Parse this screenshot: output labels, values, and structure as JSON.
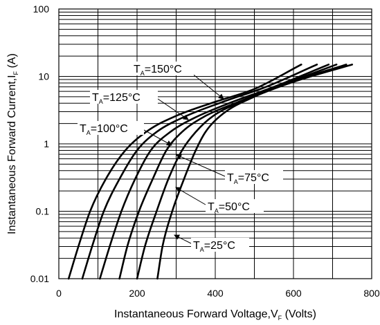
{
  "chart_data": {
    "type": "line",
    "title": "",
    "xlabel": {
      "main": "Instantaneous Forward Voltage,V",
      "sub": "F",
      "suffix": " (Volts)"
    },
    "ylabel": {
      "main": "Instantaneous Forward Current,I",
      "sub": "F",
      "suffix": " (A)"
    },
    "xlim": [
      0,
      800
    ],
    "ylim": [
      0.01,
      100
    ],
    "yscale": "log",
    "grid": true,
    "x_ticks": [
      "0",
      "200",
      "400",
      "600",
      "800"
    ],
    "y_ticks": [
      "0.01",
      "0.1",
      "1",
      "10",
      "100"
    ],
    "series": [
      {
        "name": "T_A=150°C",
        "label_main": "T",
        "label_sub": "A",
        "label_rest": "=150°C",
        "points": [
          [
            25,
            0.01
          ],
          [
            50,
            0.03
          ],
          [
            80,
            0.1
          ],
          [
            120,
            0.3
          ],
          [
            170,
            0.8
          ],
          [
            230,
            1.6
          ],
          [
            300,
            2.6
          ],
          [
            400,
            4.2
          ],
          [
            500,
            6.5
          ],
          [
            620,
            15
          ]
        ]
      },
      {
        "name": "T_A=125°C",
        "label_main": "T",
        "label_sub": "A",
        "label_rest": "=125°C",
        "points": [
          [
            60,
            0.01
          ],
          [
            85,
            0.03
          ],
          [
            115,
            0.1
          ],
          [
            155,
            0.3
          ],
          [
            200,
            0.8
          ],
          [
            250,
            1.5
          ],
          [
            320,
            2.5
          ],
          [
            420,
            4.2
          ],
          [
            530,
            7
          ],
          [
            660,
            15
          ]
        ]
      },
      {
        "name": "T_A=100°C",
        "label_main": "T",
        "label_sub": "A",
        "label_rest": "=100°C",
        "points": [
          [
            105,
            0.01
          ],
          [
            130,
            0.03
          ],
          [
            160,
            0.1
          ],
          [
            195,
            0.3
          ],
          [
            235,
            0.8
          ],
          [
            285,
            1.5
          ],
          [
            345,
            2.4
          ],
          [
            440,
            4.1
          ],
          [
            550,
            7
          ],
          [
            690,
            15
          ]
        ]
      },
      {
        "name": "T_A=75°C",
        "label_main": "T",
        "label_sub": "A",
        "label_rest": "=75°C",
        "points": [
          [
            155,
            0.01
          ],
          [
            175,
            0.03
          ],
          [
            205,
            0.1
          ],
          [
            240,
            0.3
          ],
          [
            275,
            0.8
          ],
          [
            315,
            1.5
          ],
          [
            370,
            2.5
          ],
          [
            460,
            4.2
          ],
          [
            565,
            7.3
          ],
          [
            710,
            15
          ]
        ]
      },
      {
        "name": "T_A=50°C",
        "label_main": "T",
        "label_sub": "A",
        "label_rest": "=50°C",
        "points": [
          [
            200,
            0.01
          ],
          [
            220,
            0.03
          ],
          [
            250,
            0.1
          ],
          [
            280,
            0.3
          ],
          [
            315,
            0.8
          ],
          [
            350,
            1.5
          ],
          [
            395,
            2.6
          ],
          [
            480,
            4.5
          ],
          [
            580,
            7.8
          ],
          [
            735,
            15
          ]
        ]
      },
      {
        "name": "T_A=25°C",
        "label_main": "T",
        "label_sub": "A",
        "label_rest": "=25°C",
        "points": [
          [
            252,
            0.01
          ],
          [
            265,
            0.03
          ],
          [
            290,
            0.1
          ],
          [
            320,
            0.3
          ],
          [
            350,
            0.8
          ],
          [
            375,
            1.5
          ],
          [
            420,
            2.8
          ],
          [
            500,
            5
          ],
          [
            600,
            8.3
          ],
          [
            750,
            15
          ]
        ]
      }
    ]
  }
}
